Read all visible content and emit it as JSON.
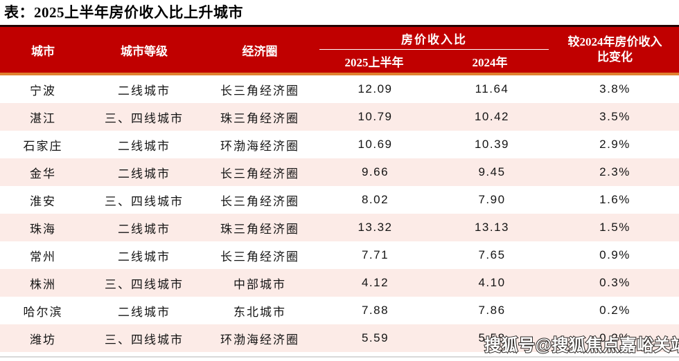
{
  "title": "表：2025上半年房价收入比上升城市",
  "watermark": "搜狐号@搜狐焦点嘉峪关站",
  "colors": {
    "header_bg": "#c00000",
    "header_top_border": "#240303",
    "header_accent_line": "#e0812f",
    "row_alt_bg": "#fcebe7",
    "header_text": "#ffffff",
    "body_text": "#141414",
    "bottom_divider": "#d9d9d9"
  },
  "header": {
    "city": "城市",
    "tier": "城市等级",
    "circle": "经济圈",
    "ratio_group": "房价收入比",
    "ratio_2025": "2025上半年",
    "ratio_2024": "2024年",
    "change_line1": "较2024年房价收入",
    "change_line2": "比变化"
  },
  "rows": [
    {
      "city": "宁波",
      "tier": "二线城市",
      "circle": "长三角经济圈",
      "ratio_2025": "12.09",
      "ratio_2024": "11.64",
      "change": "3.8%"
    },
    {
      "city": "湛江",
      "tier": "三、四线城市",
      "circle": "珠三角经济圈",
      "ratio_2025": "10.79",
      "ratio_2024": "10.42",
      "change": "3.5%"
    },
    {
      "city": "石家庄",
      "tier": "二线城市",
      "circle": "环渤海经济圈",
      "ratio_2025": "10.69",
      "ratio_2024": "10.39",
      "change": "2.9%"
    },
    {
      "city": "金华",
      "tier": "二线城市",
      "circle": "长三角经济圈",
      "ratio_2025": "9.66",
      "ratio_2024": "9.45",
      "change": "2.3%"
    },
    {
      "city": "淮安",
      "tier": "三、四线城市",
      "circle": "长三角经济圈",
      "ratio_2025": "8.02",
      "ratio_2024": "7.90",
      "change": "1.6%"
    },
    {
      "city": "珠海",
      "tier": "二线城市",
      "circle": "珠三角经济圈",
      "ratio_2025": "13.32",
      "ratio_2024": "13.13",
      "change": "1.5%"
    },
    {
      "city": "常州",
      "tier": "二线城市",
      "circle": "长三角经济圈",
      "ratio_2025": "7.71",
      "ratio_2024": "7.65",
      "change": "0.9%"
    },
    {
      "city": "株洲",
      "tier": "三、四线城市",
      "circle": "中部城市",
      "ratio_2025": "4.12",
      "ratio_2024": "4.10",
      "change": "0.3%"
    },
    {
      "city": "哈尔滨",
      "tier": "二线城市",
      "circle": "东北城市",
      "ratio_2025": "7.88",
      "ratio_2024": "7.86",
      "change": "0.2%"
    },
    {
      "city": "潍坊",
      "tier": "三、四线城市",
      "circle": "环渤海经济圈",
      "ratio_2025": "5.59",
      "ratio_2024": "5.58",
      "change": "0.2%"
    }
  ],
  "chart_data": {
    "type": "table",
    "title": "表：2025上半年房价收入比上升城市",
    "columns": [
      "城市",
      "城市等级",
      "经济圈",
      "房价收入比 2025上半年",
      "房价收入比 2024年",
      "较2024年房价收入比变化"
    ],
    "rows": [
      [
        "宁波",
        "二线城市",
        "长三角经济圈",
        12.09,
        11.64,
        "3.8%"
      ],
      [
        "湛江",
        "三、四线城市",
        "珠三角经济圈",
        10.79,
        10.42,
        "3.5%"
      ],
      [
        "石家庄",
        "二线城市",
        "环渤海经济圈",
        10.69,
        10.39,
        "2.9%"
      ],
      [
        "金华",
        "二线城市",
        "长三角经济圈",
        9.66,
        9.45,
        "2.3%"
      ],
      [
        "淮安",
        "三、四线城市",
        "长三角经济圈",
        8.02,
        7.9,
        "1.6%"
      ],
      [
        "珠海",
        "二线城市",
        "珠三角经济圈",
        13.32,
        13.13,
        "1.5%"
      ],
      [
        "常州",
        "二线城市",
        "长三角经济圈",
        7.71,
        7.65,
        "0.9%"
      ],
      [
        "株洲",
        "三、四线城市",
        "中部城市",
        4.12,
        4.1,
        "0.3%"
      ],
      [
        "哈尔滨",
        "二线城市",
        "东北城市",
        7.88,
        7.86,
        "0.2%"
      ],
      [
        "潍坊",
        "三、四线城市",
        "环渤海经济圈",
        5.59,
        5.58,
        "0.2%"
      ]
    ]
  }
}
